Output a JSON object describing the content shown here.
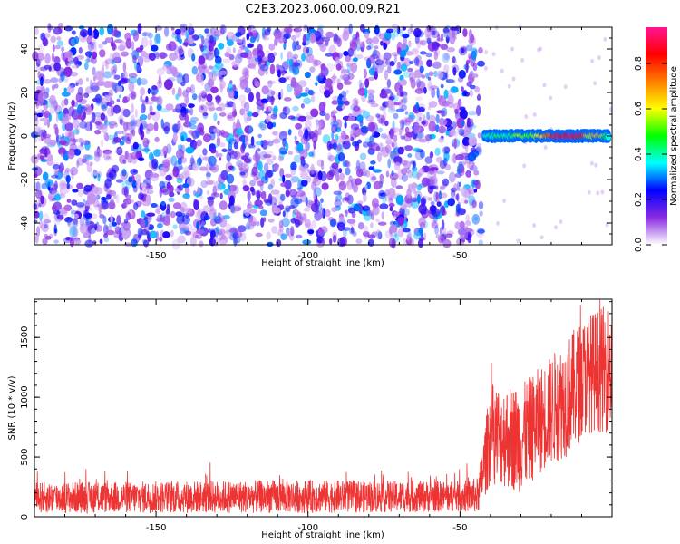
{
  "title": "C2E3.2023.060.00.09.R21",
  "chart_data": [
    {
      "type": "heatmap",
      "xlabel": "Height of straight line (km)",
      "ylabel": "Frequency (Hz)",
      "xlim": [
        -190,
        0
      ],
      "ylim": [
        -50,
        50
      ],
      "xticks": [
        -150,
        -100,
        -50
      ],
      "yticks": [
        -40,
        -20,
        0,
        20,
        40
      ],
      "grid": false,
      "description_of_pattern": {
        "noise_region_x": [
          -190,
          -43
        ],
        "signal_region_x": [
          -43,
          0
        ],
        "signal_frequency_hz": 0,
        "noise_level": [
          0.05,
          0.35
        ]
      },
      "colorbar": {
        "label": "Normalized spectral amplitude",
        "range": [
          0,
          0.96
        ],
        "ticks": [
          0.0,
          0.2,
          0.4,
          0.6,
          0.8
        ],
        "colormap": [
          "#ffffff",
          "#8a2be2",
          "#0000ff",
          "#00ffff",
          "#00ff00",
          "#ffff00",
          "#ff7f00",
          "#ff0000",
          "#ff1493"
        ]
      },
      "signal_profile": [
        {
          "x": -42,
          "amp": 0.35
        },
        {
          "x": -38,
          "amp": 0.45
        },
        {
          "x": -34,
          "amp": 0.4
        },
        {
          "x": -30,
          "amp": 0.55
        },
        {
          "x": -26,
          "amp": 0.5
        },
        {
          "x": -22,
          "amp": 0.75
        },
        {
          "x": -18,
          "amp": 0.9
        },
        {
          "x": -14,
          "amp": 0.95
        },
        {
          "x": -10,
          "amp": 0.88
        },
        {
          "x": -7,
          "amp": 0.6
        },
        {
          "x": -4,
          "amp": 0.7
        },
        {
          "x": -1,
          "amp": 0.35
        }
      ]
    },
    {
      "type": "line",
      "xlabel": "Height of straight line (km)",
      "ylabel": "SNR (10 * v/v)",
      "xlim": [
        -190,
        0
      ],
      "ylim": [
        0,
        1820
      ],
      "xticks": [
        -150,
        -100,
        -50
      ],
      "yticks": [
        0,
        500,
        1000,
        1500
      ],
      "color": "#ee3333",
      "envelope": [
        {
          "x": -190,
          "base": 160,
          "spread": 130
        },
        {
          "x": -100,
          "base": 170,
          "spread": 140
        },
        {
          "x": -50,
          "base": 170,
          "spread": 130
        },
        {
          "x": -44,
          "base": 180,
          "spread": 150
        },
        {
          "x": -40,
          "base": 700,
          "spread": 420
        },
        {
          "x": -30,
          "base": 650,
          "spread": 450
        },
        {
          "x": -22,
          "base": 850,
          "spread": 450
        },
        {
          "x": -15,
          "base": 1000,
          "spread": 500
        },
        {
          "x": -8,
          "base": 1200,
          "spread": 500
        },
        {
          "x": 0,
          "base": 1250,
          "spread": 550
        }
      ]
    }
  ]
}
